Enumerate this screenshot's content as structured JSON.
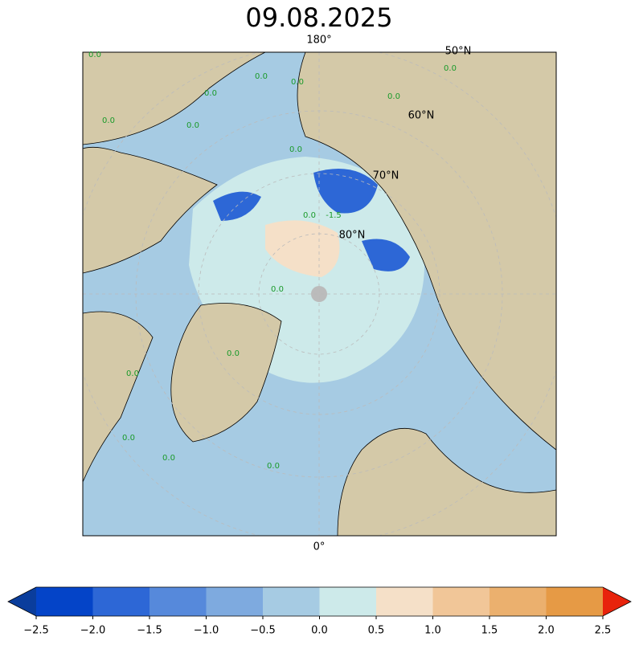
{
  "title": "09.08.2025",
  "map": {
    "lon_labels": [
      "180°",
      "0°"
    ],
    "lat_labels": [
      "50°N",
      "60°N",
      "70°N",
      "80°N"
    ],
    "contour_labels": [
      "0.0",
      "0.0",
      "0.0",
      "0.0",
      "0.0",
      "0.0",
      "0.0",
      "0.0",
      "0.0",
      "0.0",
      "0.0",
      "0.0",
      "0.0",
      "0.0",
      "0.0",
      "0.0",
      "-1.5"
    ]
  },
  "colorbar": {
    "lim": [
      -2.5,
      2.5
    ],
    "ticks": [
      {
        "value": -2.5,
        "label": "−2.5"
      },
      {
        "value": -2.0,
        "label": "−2.0"
      },
      {
        "value": -1.5,
        "label": "−1.5"
      },
      {
        "value": -1.0,
        "label": "−1.0"
      },
      {
        "value": -0.5,
        "label": "−0.5"
      },
      {
        "value": 0.0,
        "label": "0.0"
      },
      {
        "value": 0.5,
        "label": "0.5"
      },
      {
        "value": 1.0,
        "label": "1.0"
      },
      {
        "value": 1.5,
        "label": "1.5"
      },
      {
        "value": 2.0,
        "label": "2.0"
      },
      {
        "value": 2.5,
        "label": "2.5"
      }
    ],
    "colors": [
      "#0444c8",
      "#2d67d6",
      "#5689db",
      "#7eaadf",
      "#a6cbe3",
      "#cdeaea",
      "#f5e0c8",
      "#f1c698",
      "#ebb06e",
      "#e69a45"
    ],
    "extend_colors": [
      "#0a3d9c",
      "#e8230c"
    ]
  }
}
